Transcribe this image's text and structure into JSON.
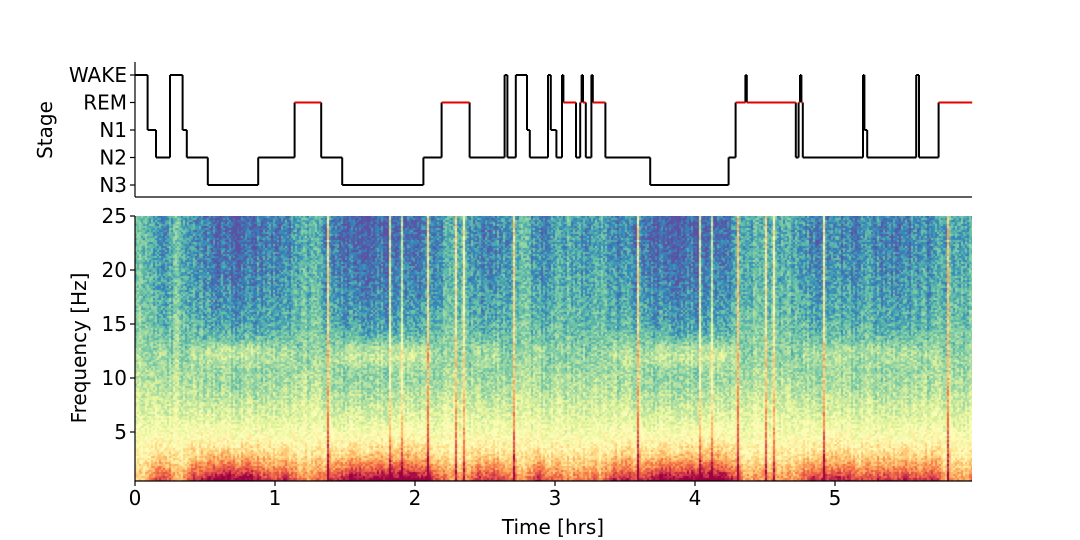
{
  "chart_data": [
    {
      "type": "line",
      "subtype": "hypnogram-step",
      "ylabel": "Stage",
      "xlim": [
        0,
        5.98
      ],
      "y_categories": [
        "WAKE",
        "REM",
        "N1",
        "N2",
        "N3"
      ],
      "colors": {
        "default": "#000000",
        "REM": "#e00000"
      },
      "segments": [
        [
          0,
          0.09,
          "WAKE"
        ],
        [
          0.09,
          0.15,
          "N1"
        ],
        [
          0.15,
          0.25,
          "N2"
        ],
        [
          0.25,
          0.34,
          "WAKE"
        ],
        [
          0.34,
          0.37,
          "N1"
        ],
        [
          0.37,
          0.52,
          "N2"
        ],
        [
          0.52,
          0.88,
          "N3"
        ],
        [
          0.88,
          1.14,
          "N2"
        ],
        [
          1.14,
          1.33,
          "REM"
        ],
        [
          1.33,
          1.48,
          "N2"
        ],
        [
          1.48,
          2.06,
          "N3"
        ],
        [
          2.06,
          2.19,
          "N2"
        ],
        [
          2.19,
          2.39,
          "REM"
        ],
        [
          2.39,
          2.64,
          "N2"
        ],
        [
          2.64,
          2.66,
          "WAKE"
        ],
        [
          2.66,
          2.72,
          "N2"
        ],
        [
          2.72,
          2.8,
          "WAKE"
        ],
        [
          2.8,
          2.82,
          "N1"
        ],
        [
          2.82,
          2.95,
          "N2"
        ],
        [
          2.95,
          2.97,
          "WAKE"
        ],
        [
          2.97,
          3.01,
          "N1"
        ],
        [
          3.01,
          3.05,
          "N2"
        ],
        [
          3.05,
          3.06,
          "WAKE"
        ],
        [
          3.06,
          3.15,
          "REM"
        ],
        [
          3.15,
          3.18,
          "N2"
        ],
        [
          3.18,
          3.19,
          "REM"
        ],
        [
          3.19,
          3.2,
          "WAKE"
        ],
        [
          3.2,
          3.22,
          "REM"
        ],
        [
          3.22,
          3.26,
          "N2"
        ],
        [
          3.26,
          3.27,
          "WAKE"
        ],
        [
          3.27,
          3.36,
          "REM"
        ],
        [
          3.36,
          3.68,
          "N2"
        ],
        [
          3.68,
          4.24,
          "N3"
        ],
        [
          4.24,
          4.29,
          "N2"
        ],
        [
          4.29,
          4.36,
          "REM"
        ],
        [
          4.36,
          4.37,
          "WAKE"
        ],
        [
          4.37,
          4.72,
          "REM"
        ],
        [
          4.72,
          4.74,
          "N2"
        ],
        [
          4.74,
          4.75,
          "REM"
        ],
        [
          4.75,
          4.76,
          "WAKE"
        ],
        [
          4.76,
          4.77,
          "REM"
        ],
        [
          4.77,
          5.2,
          "N2"
        ],
        [
          5.2,
          5.21,
          "WAKE"
        ],
        [
          5.21,
          5.23,
          "N1"
        ],
        [
          5.23,
          5.58,
          "N2"
        ],
        [
          5.58,
          5.6,
          "WAKE"
        ],
        [
          5.6,
          5.74,
          "N2"
        ],
        [
          5.74,
          5.98,
          "REM"
        ]
      ]
    },
    {
      "type": "heatmap",
      "subtype": "spectrogram",
      "colormap": "Spectral_r",
      "xlabel": "Time [hrs]",
      "ylabel": "Frequency [Hz]",
      "xlim": [
        0,
        5.98
      ],
      "ylim": [
        0.5,
        25
      ],
      "xticks": [
        "0",
        "1",
        "2",
        "3",
        "4",
        "5"
      ],
      "yticks": [
        "5",
        "10",
        "15",
        "20",
        "25"
      ]
    }
  ]
}
